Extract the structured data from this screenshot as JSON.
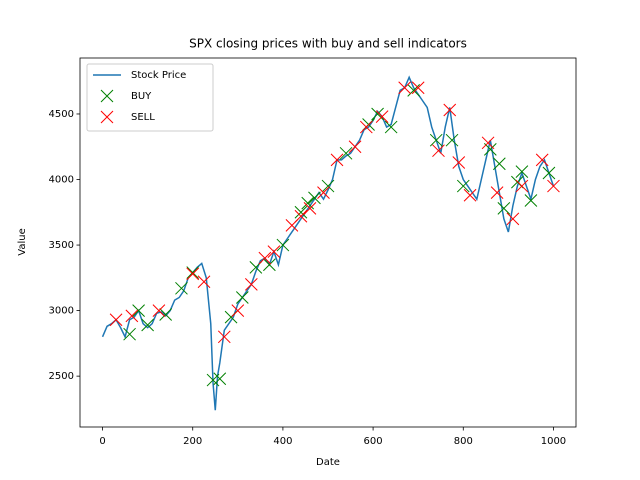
{
  "chart_data": {
    "type": "line",
    "title": "SPX closing prices with buy and sell indicators",
    "xlabel": "Date",
    "ylabel": "Value",
    "xlim": [
      -50,
      1050
    ],
    "ylim": [
      2112,
      4927
    ],
    "xticks": [
      0,
      200,
      400,
      600,
      800,
      1000
    ],
    "yticks": [
      2500,
      3000,
      3500,
      4000,
      4500
    ],
    "grid": false,
    "legend": "upper left",
    "series": [
      {
        "name": "Stock Price",
        "style": "line",
        "color": "#1f77b4",
        "x": [
          0,
          10,
          20,
          30,
          40,
          50,
          60,
          70,
          80,
          90,
          100,
          110,
          120,
          130,
          140,
          150,
          160,
          170,
          180,
          190,
          200,
          210,
          220,
          230,
          240,
          245,
          250,
          255,
          260,
          270,
          280,
          290,
          300,
          310,
          320,
          330,
          340,
          350,
          360,
          370,
          380,
          390,
          400,
          410,
          420,
          430,
          440,
          450,
          460,
          470,
          480,
          490,
          500,
          510,
          520,
          530,
          540,
          550,
          560,
          570,
          580,
          590,
          600,
          610,
          620,
          630,
          640,
          650,
          660,
          670,
          680,
          690,
          700,
          710,
          720,
          730,
          740,
          750,
          760,
          770,
          780,
          790,
          800,
          810,
          820,
          830,
          840,
          850,
          860,
          870,
          880,
          890,
          900,
          910,
          920,
          930,
          940,
          950,
          960,
          970,
          980,
          990,
          1000
        ],
        "values": [
          2800,
          2880,
          2900,
          2930,
          2870,
          2800,
          2930,
          2950,
          3000,
          2900,
          2870,
          2900,
          2980,
          2990,
          2960,
          3000,
          3080,
          3100,
          3150,
          3250,
          3290,
          3330,
          3360,
          3250,
          2900,
          2450,
          2240,
          2500,
          2600,
          2850,
          2900,
          2950,
          3050,
          3100,
          3150,
          3200,
          3300,
          3380,
          3400,
          3350,
          3450,
          3350,
          3500,
          3550,
          3600,
          3650,
          3700,
          3750,
          3800,
          3850,
          3900,
          3850,
          3920,
          4000,
          4150,
          4150,
          4180,
          4200,
          4250,
          4300,
          4380,
          4400,
          4450,
          4520,
          4480,
          4400,
          4420,
          4550,
          4680,
          4700,
          4780,
          4700,
          4650,
          4600,
          4550,
          4400,
          4300,
          4200,
          4400,
          4550,
          4300,
          4100,
          4000,
          3950,
          3900,
          3850,
          4000,
          4150,
          4300,
          4100,
          3900,
          3700,
          3600,
          3800,
          3950,
          4050,
          3950,
          3850,
          4000,
          4100,
          4150,
          4050,
          3950
        ]
      },
      {
        "name": "BUY",
        "style": "x",
        "color": "green",
        "x": [
          60,
          80,
          100,
          140,
          175,
          200,
          245,
          260,
          285,
          310,
          340,
          370,
          400,
          440,
          455,
          470,
          500,
          540,
          590,
          610,
          640,
          690,
          740,
          775,
          800,
          860,
          880,
          890,
          920,
          930,
          950,
          990
        ],
        "values": [
          2820,
          3000,
          2890,
          2970,
          3170,
          3290,
          2470,
          2480,
          2950,
          3100,
          3330,
          3350,
          3500,
          3750,
          3820,
          3860,
          3950,
          4200,
          4420,
          4500,
          4400,
          4680,
          4300,
          4300,
          3950,
          4230,
          4120,
          3780,
          3980,
          4060,
          3840,
          4050
        ]
      },
      {
        "name": "SELL",
        "style": "x",
        "color": "red",
        "x": [
          30,
          65,
          125,
          200,
          225,
          270,
          300,
          330,
          360,
          380,
          420,
          440,
          460,
          490,
          520,
          560,
          585,
          620,
          670,
          700,
          745,
          770,
          790,
          815,
          855,
          875,
          910,
          930,
          975,
          1000
        ],
        "values": [
          2930,
          2960,
          3000,
          3280,
          3220,
          2800,
          3000,
          3200,
          3400,
          3450,
          3650,
          3720,
          3780,
          3900,
          4150,
          4250,
          4400,
          4480,
          4700,
          4700,
          4220,
          4530,
          4130,
          3880,
          4280,
          3900,
          3700,
          3950,
          4150,
          3950
        ]
      }
    ]
  }
}
